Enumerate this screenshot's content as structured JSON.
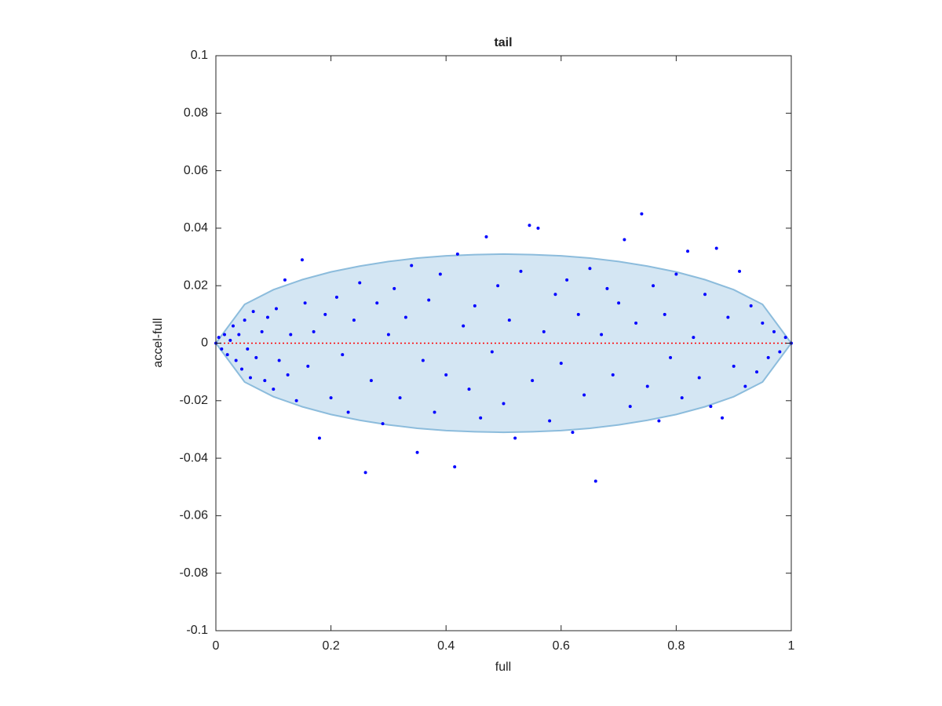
{
  "chart_data": {
    "type": "scatter",
    "title": "tail",
    "x_label": "full",
    "y_label": "accel-full",
    "xlim": [
      0,
      1
    ],
    "ylim": [
      -0.1,
      0.1
    ],
    "xticks": [
      0,
      0.2,
      0.4,
      0.6,
      0.8,
      1
    ],
    "yticks": [
      -0.1,
      -0.08,
      -0.06,
      -0.04,
      -0.02,
      0,
      0.02,
      0.04,
      0.06,
      0.08,
      0.1
    ],
    "series": [
      {
        "color": "#0000ff",
        "x": [
          0,
          0.005,
          0.01,
          0.015,
          0.02,
          0.025,
          0.03,
          0.035,
          0.04,
          0.045,
          0.05,
          0.055,
          0.06,
          0.065,
          0.07,
          0.08,
          0.085,
          0.09,
          0.1,
          0.105,
          0.11,
          0.12,
          0.125,
          0.13,
          0.14,
          0.15,
          0.155,
          0.16,
          0.17,
          0.18,
          0.19,
          0.2,
          0.21,
          0.22,
          0.23,
          0.24,
          0.25,
          0.26,
          0.27,
          0.28,
          0.29,
          0.3,
          0.31,
          0.32,
          0.33,
          0.34,
          0.35,
          0.36,
          0.37,
          0.38,
          0.39,
          0.4,
          0.415,
          0.42,
          0.43,
          0.44,
          0.45,
          0.46,
          0.47,
          0.48,
          0.49,
          0.5,
          0.51,
          0.52,
          0.53,
          0.545,
          0.55,
          0.56,
          0.57,
          0.58,
          0.59,
          0.6,
          0.61,
          0.62,
          0.63,
          0.64,
          0.65,
          0.66,
          0.67,
          0.68,
          0.69,
          0.7,
          0.71,
          0.72,
          0.73,
          0.74,
          0.75,
          0.76,
          0.77,
          0.78,
          0.79,
          0.8,
          0.81,
          0.82,
          0.83,
          0.84,
          0.85,
          0.86,
          0.87,
          0.88,
          0.89,
          0.9,
          0.91,
          0.92,
          0.93,
          0.94,
          0.95,
          0.96,
          0.97,
          0.98,
          0.99,
          1
        ],
        "values": [
          0,
          0.002,
          -0.002,
          0.003,
          -0.004,
          0.001,
          0.006,
          -0.006,
          0.003,
          -0.009,
          0.008,
          -0.002,
          -0.012,
          0.011,
          -0.005,
          0.004,
          -0.013,
          0.009,
          -0.016,
          0.012,
          -0.006,
          0.022,
          -0.011,
          0.003,
          -0.02,
          0.029,
          0.014,
          -0.008,
          0.004,
          -0.033,
          0.01,
          -0.019,
          0.016,
          -0.004,
          -0.024,
          0.008,
          0.021,
          -0.045,
          -0.013,
          0.014,
          -0.028,
          0.003,
          0.019,
          -0.019,
          0.009,
          0.027,
          -0.038,
          -0.006,
          0.015,
          -0.024,
          0.024,
          -0.011,
          -0.043,
          0.031,
          0.006,
          -0.016,
          0.013,
          -0.026,
          0.037,
          -0.003,
          0.02,
          -0.021,
          0.008,
          -0.033,
          0.025,
          0.041,
          -0.013,
          0.04,
          0.004,
          -0.027,
          0.017,
          -0.007,
          0.022,
          -0.031,
          0.01,
          -0.018,
          0.026,
          -0.048,
          0.003,
          0.019,
          -0.011,
          0.014,
          0.036,
          -0.022,
          0.007,
          0.045,
          -0.015,
          0.02,
          -0.027,
          0.01,
          -0.005,
          0.024,
          -0.019,
          0.032,
          0.002,
          -0.012,
          0.017,
          -0.022,
          0.033,
          -0.026,
          0.009,
          -0.008,
          0.025,
          -0.015,
          0.013,
          -0.01,
          0.007,
          -0.005,
          0.004,
          -0.003,
          0.002,
          0
        ]
      }
    ],
    "band": {
      "color": "#d4e6f3",
      "edge": "#8cbcdc",
      "x": [
        0,
        0.05,
        0.1,
        0.15,
        0.2,
        0.25,
        0.3,
        0.35,
        0.4,
        0.45,
        0.5,
        0.55,
        0.6,
        0.65,
        0.7,
        0.75,
        0.8,
        0.85,
        0.9,
        0.95,
        1
      ],
      "upper": [
        0,
        0.0135,
        0.0186,
        0.0221,
        0.0248,
        0.0268,
        0.0284,
        0.0296,
        0.0304,
        0.0308,
        0.031,
        0.0308,
        0.0304,
        0.0296,
        0.0284,
        0.0268,
        0.0248,
        0.0221,
        0.0186,
        0.0135,
        0
      ],
      "lower": [
        0,
        -0.0135,
        -0.0186,
        -0.0221,
        -0.0248,
        -0.0268,
        -0.0284,
        -0.0296,
        -0.0304,
        -0.0308,
        -0.031,
        -0.0308,
        -0.0304,
        -0.0296,
        -0.0284,
        -0.0268,
        -0.0248,
        -0.0221,
        -0.0186,
        -0.0135,
        0
      ]
    },
    "reference_line": {
      "color": "#ff0000",
      "x": [
        0,
        1
      ],
      "values": [
        0,
        0
      ]
    }
  }
}
